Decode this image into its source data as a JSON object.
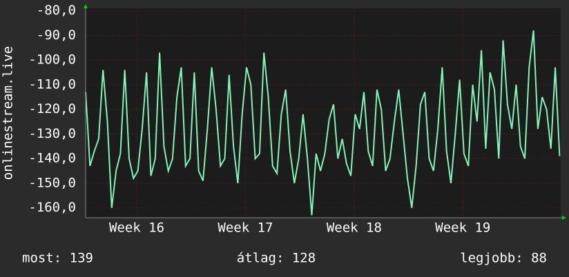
{
  "chart_data": {
    "type": "line",
    "y_label": "onlinestream.live",
    "x": [
      15.53,
      15.57,
      15.61,
      15.65,
      15.69,
      15.73,
      15.77,
      15.81,
      15.85,
      15.89,
      15.93,
      15.97,
      16.01,
      16.05,
      16.09,
      16.13,
      16.17,
      16.21,
      16.25,
      16.29,
      16.33,
      16.37,
      16.41,
      16.45,
      16.49,
      16.53,
      16.57,
      16.61,
      16.65,
      16.69,
      16.73,
      16.77,
      16.81,
      16.85,
      16.89,
      16.93,
      16.97,
      17.01,
      17.05,
      17.09,
      17.13,
      17.17,
      17.21,
      17.25,
      17.29,
      17.33,
      17.37,
      17.41,
      17.45,
      17.49,
      17.53,
      17.57,
      17.61,
      17.65,
      17.69,
      17.73,
      17.77,
      17.81,
      17.85,
      17.89,
      17.93,
      17.97,
      18.01,
      18.05,
      18.09,
      18.13,
      18.17,
      18.21,
      18.25,
      18.29,
      18.33,
      18.37,
      18.41,
      18.45,
      18.49,
      18.53,
      18.57,
      18.61,
      18.65,
      18.69,
      18.73,
      18.77,
      18.81,
      18.85,
      18.89,
      18.93,
      18.97,
      19.01,
      19.05,
      19.09,
      19.13,
      19.17,
      19.21,
      19.25,
      19.29,
      19.33,
      19.37,
      19.41,
      19.45,
      19.49,
      19.53,
      19.57,
      19.61,
      19.65,
      19.69,
      19.73,
      19.77,
      19.81,
      19.85,
      19.89
    ],
    "series": [
      {
        "color": "#80f5b8",
        "values": [
          -113,
          -143,
          -137,
          -132,
          -104,
          -125,
          -160,
          -145,
          -138,
          -104,
          -140,
          -148,
          -145,
          -128,
          -105,
          -147,
          -140,
          -97,
          -135,
          -145,
          -140,
          -115,
          -103,
          -143,
          -140,
          -105,
          -145,
          -149,
          -128,
          -103,
          -120,
          -143,
          -140,
          -106,
          -135,
          -150,
          -122,
          -103,
          -110,
          -140,
          -138,
          -97,
          -115,
          -143,
          -146,
          -122,
          -112,
          -137,
          -150,
          -140,
          -122,
          -140,
          -163,
          -138,
          -145,
          -138,
          -124,
          -118,
          -140,
          -132,
          -142,
          -147,
          -122,
          -128,
          -113,
          -137,
          -143,
          -112,
          -120,
          -145,
          -140,
          -125,
          -112,
          -130,
          -148,
          -160,
          -143,
          -118,
          -113,
          -140,
          -145,
          -128,
          -103,
          -137,
          -150,
          -130,
          -108,
          -138,
          -143,
          -110,
          -125,
          -96,
          -136,
          -105,
          -112,
          -140,
          -92,
          -118,
          -128,
          -110,
          -135,
          -140,
          -103,
          -88,
          -128,
          -115,
          -120,
          -136,
          -103,
          -139
        ]
      }
    ],
    "xlim": [
      15.53,
      19.9
    ],
    "xticks": [
      {
        "value": 16,
        "label": "Week 16"
      },
      {
        "value": 17,
        "label": "Week 17"
      },
      {
        "value": 18,
        "label": "Week 18"
      },
      {
        "value": 19,
        "label": "Week 19"
      }
    ],
    "ylim": [
      -164,
      -79
    ],
    "yticks": [
      {
        "value": -80,
        "label": "-80,0"
      },
      {
        "value": -90,
        "label": "-90,0"
      },
      {
        "value": -100,
        "label": "-100,0"
      },
      {
        "value": -110,
        "label": "-110,0"
      },
      {
        "value": -120,
        "label": "-120,0"
      },
      {
        "value": -130,
        "label": "-130,0"
      },
      {
        "value": -140,
        "label": "-140,0"
      },
      {
        "value": -150,
        "label": "-150,0"
      },
      {
        "value": -160,
        "label": "-160,0"
      }
    ],
    "grid": true,
    "annotations": [
      "most: 139",
      "átlag: 128",
      "legjobb: 88"
    ]
  }
}
